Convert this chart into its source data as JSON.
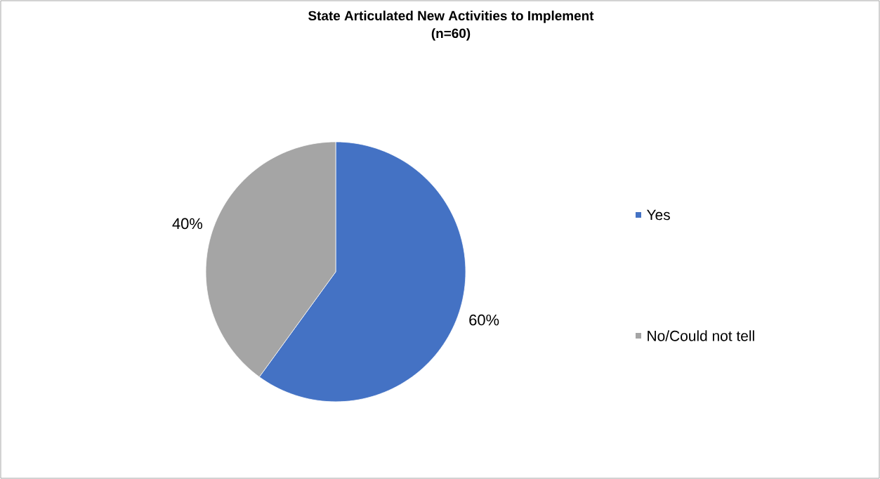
{
  "chart_data": {
    "type": "pie",
    "title": "State Articulated New Activities to Implement",
    "subtitle": "(n=60)",
    "categories": [
      "Yes",
      "No/Could not tell"
    ],
    "values": [
      60,
      40
    ],
    "colors": [
      "#4472c4",
      "#a5a5a5"
    ],
    "value_labels": [
      "60%",
      "40%"
    ],
    "legend": "right"
  }
}
